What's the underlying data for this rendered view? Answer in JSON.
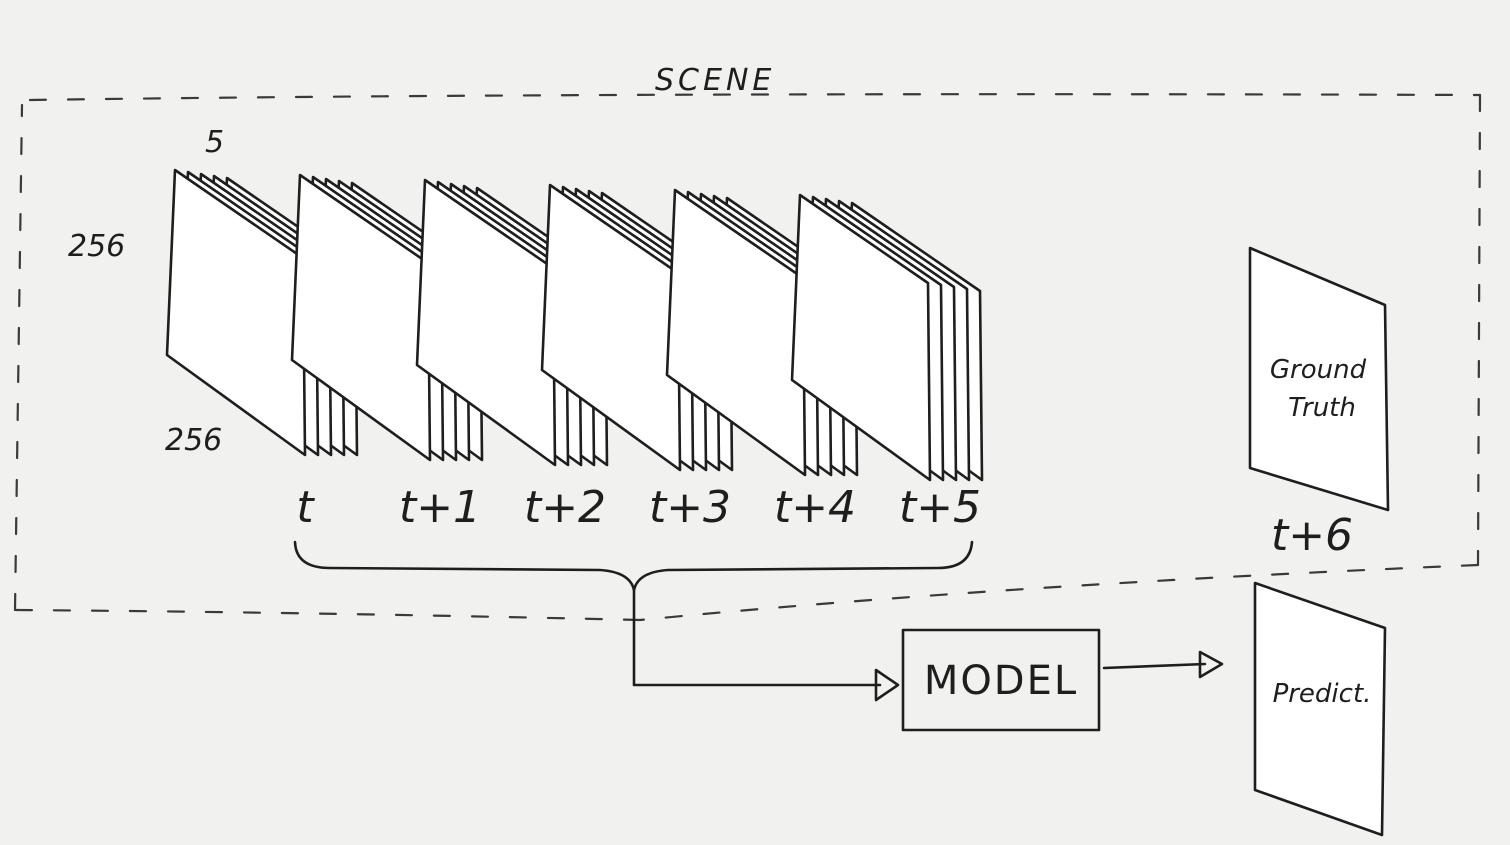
{
  "scene_label": "SCENE",
  "dims": {
    "channels": "5",
    "height": "256",
    "width": "256"
  },
  "input_frames": [
    {
      "label": "t"
    },
    {
      "label": "t+1"
    },
    {
      "label": "t+2"
    },
    {
      "label": "t+3"
    },
    {
      "label": "t+4"
    },
    {
      "label": "t+5"
    }
  ],
  "model_label": "MODEL",
  "ground_truth": {
    "time_label": "t+6",
    "line1": "Ground",
    "line2": "Truth"
  },
  "prediction": {
    "label": "Predict."
  },
  "colors": {
    "ink": "#1e1e1e",
    "paper": "#f1f1ef",
    "sheet": "#ffffff"
  }
}
